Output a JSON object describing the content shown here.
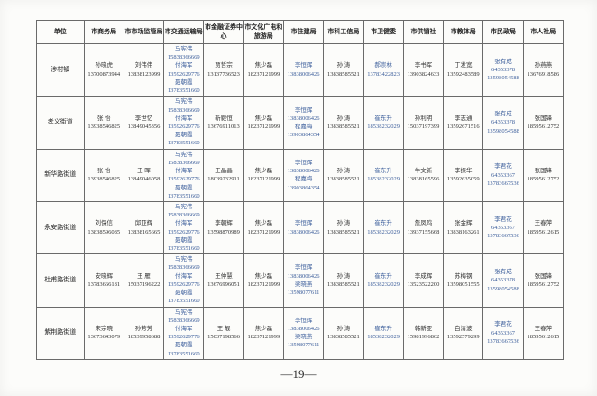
{
  "page": {
    "number_label": "—19—"
  },
  "colors": {
    "text": "#343434",
    "tint": "#3c5e9b",
    "border": "#6a6a6a"
  },
  "table": {
    "headers": [
      "单位",
      "市商务局",
      "市市场监管局",
      "市交通运输局",
      "市金融证券中心",
      "市文化广电和旅游局",
      "市住建局",
      "市科工信局",
      "市卫健委",
      "市供销社",
      "市教体局",
      "市民政局",
      "市人社局"
    ],
    "tint_cell_indexes": [
      2,
      5,
      7,
      10
    ],
    "rows": [
      {
        "unit": "涉村镇",
        "cells": [
          "孙晓虎\n13700873944",
          "刘伟伟\n13838123999",
          "马宪伟\n15838366669\n付海军\n13592629776\n聂朝霞\n13783551660",
          "贾哲宗\n13137736523",
          "焦少磊\n18237121999",
          "李恒辉\n13838006426",
          "孙 涛\n13838585521",
          "郝崇林\n13783422823",
          "李书军\n13903824633",
          "丁发宽\n13592483589",
          "张有成\n64353378\n13598054588",
          "孙燕燕\n13676918586"
        ]
      },
      {
        "unit": "孝义街道",
        "cells": [
          "张 怡\n13938546825",
          "李世忆\n13849045356",
          "马宪伟\n15838366669\n付海军\n13592629776\n聂朝霞\n13783551660",
          "靳毅恒\n13676911013",
          "焦少磊\n18237121999",
          "李恒辉\n13838006426\n程嘉梅\n13903864354",
          "孙 涛\n13838585521",
          "崔东升\n18538232029",
          "孙利明\n15037197399",
          "李志通\n13592671516",
          "张有成\n64353378\n13598054588",
          "张国锋\n18595612752"
        ]
      },
      {
        "unit": "新华路街道",
        "cells": [
          "张 怡\n13938546825",
          "王 晖\n13849046058",
          "马宪伟\n15838366669\n付海军\n13592629776\n聂朝霞\n13783551660",
          "王晶晶\n18039232911",
          "焦少磊\n18237121999",
          "李恒辉\n13838006426\n程嘉梅\n13903864354",
          "孙 涛\n13838585521",
          "崔东升\n18538232029",
          "牛文新\n13838165596",
          "李振华\n13592635059",
          "李君花\n64353367\n13783667536",
          "张国锋\n18595612752"
        ]
      },
      {
        "unit": "永安路街道",
        "cells": [
          "刘保信\n13838596085",
          "邱亚辉\n13838165665",
          "马宪伟\n15838366669\n付海军\n13592629776\n聂朝霞\n13783551660",
          "李朝辉\n13598870989",
          "焦少磊\n18237121999",
          "李恒辉\n13838006426",
          "孙 涛\n13838585521",
          "崔东升\n18538232029",
          "詹凤鸣\n13937155668",
          "张金辉\n13838163261",
          "李君花\n64353367\n13783667536",
          "王春萍\n18595612615"
        ]
      },
      {
        "unit": "杜甫路街道",
        "cells": [
          "安晓辉\n13783666181",
          "王 雁\n15037196222",
          "马宪伟\n15838366669\n付海军\n13592629776\n聂朝霞\n13783551660",
          "王仲慧\n13676996051",
          "焦少磊\n18237121999",
          "李恒辉\n13838006426\n梁晓燕\n13598077611",
          "孙 涛\n13838585521",
          "崔东升\n18538232029",
          "李成辉\n13523522200",
          "苏梅钢\n13598051555",
          "张有成\n64353378\n13598054588",
          "张国锋\n18595612752"
        ]
      },
      {
        "unit": "紫荆路街道",
        "cells": [
          "宋宗晓\n13673643079",
          "孙芳芳\n18539958688",
          "马宪伟\n15838366669\n付海军\n13592629776\n聂朝霞\n13783551660",
          "王 靓\n15037198566",
          "焦少磊\n18237121999",
          "李恒辉\n13838006426\n梁晓燕\n13598077611",
          "孙 涛\n13838585521",
          "崔东升\n18538232029",
          "韩新亚\n15981996862",
          "白清波\n13592579299",
          "李君花\n64353367\n13783667536",
          "王春萍\n18595612615"
        ]
      }
    ]
  }
}
